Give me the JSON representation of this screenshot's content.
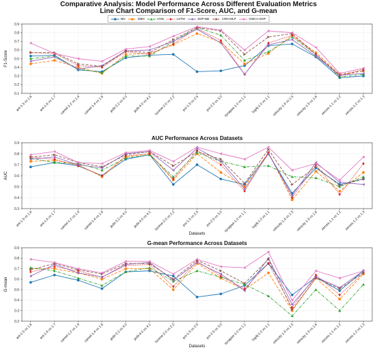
{
  "title_line1": "Comparative Analysis: Model Performance Across Different Evaluation Metrics",
  "title_line2": "Line Chart Comparison of F1-Score, AUC, and G-mean",
  "legend": [
    {
      "name": "BN",
      "color": "#1f77b4",
      "marker": "circle",
      "dash": "solid"
    },
    {
      "name": "DBN",
      "color": "#ff7f0e",
      "marker": "circle",
      "dash": "dashed"
    },
    {
      "name": "CNN",
      "color": "#2ca02c",
      "marker": "triangle",
      "dash": "dashdot"
    },
    {
      "name": "LSTM",
      "color": "#d62728",
      "marker": "diamond",
      "dash": "dotted"
    },
    {
      "name": "SDP-BB",
      "color": "#9467bd",
      "marker": "triangle-left",
      "dash": "solid"
    },
    {
      "name": "CNN-MLP",
      "color": "#8c564b",
      "marker": "triangle-right",
      "dash": "dashed"
    },
    {
      "name": "GMCA-SDP",
      "color": "#e377c2",
      "marker": "triangle-left",
      "dash": "solid"
    }
  ],
  "chart_data": [
    {
      "type": "line",
      "title": "",
      "xlabel": "",
      "ylabel": "F1-Score",
      "ylim": [
        0.1,
        0.9
      ],
      "yticks": [
        0.1,
        0.2,
        0.3,
        0.4,
        0.5,
        0.6,
        0.7,
        0.8,
        0.9
      ],
      "grid": true,
      "categories": [
        "ant-1.5 vs 1.6",
        "ant-1.6 vs 1.7",
        "camel-1.2 vs 1.4",
        "camel-1.4 vs 1.6",
        "jedit-3.2 vs 4.0",
        "jedit-4.0 vs 4.1",
        "lucene-2.0 vs 2.2",
        "poi-1.5 vs 2.5",
        "poi-2.5 vs 3.0",
        "synapse-1.0 vs 1.1",
        "log4j-1.0 vs 1.1",
        "velocity-1.4 vs 1.5",
        "velocity-1.5 vs 1.6",
        "xerces-1.1 vs 1.2",
        "xerces-1.2 vs 1.3"
      ],
      "series": [
        {
          "name": "BN",
          "values": [
            0.53,
            0.54,
            0.37,
            0.35,
            0.51,
            0.54,
            0.55,
            0.35,
            0.36,
            0.42,
            0.65,
            0.67,
            0.52,
            0.28,
            0.3
          ]
        },
        {
          "name": "DBN",
          "values": [
            0.44,
            0.48,
            0.4,
            0.33,
            0.55,
            0.56,
            0.66,
            0.79,
            0.69,
            0.44,
            0.56,
            0.77,
            0.57,
            0.32,
            0.36
          ]
        },
        {
          "name": "CNN",
          "values": [
            0.5,
            0.53,
            0.38,
            0.34,
            0.53,
            0.53,
            0.7,
            0.86,
            0.77,
            0.48,
            0.58,
            0.75,
            0.55,
            0.29,
            0.32
          ]
        },
        {
          "name": "LSTM",
          "values": [
            0.57,
            0.56,
            0.42,
            0.4,
            0.58,
            0.55,
            0.67,
            0.85,
            0.71,
            0.32,
            0.68,
            0.77,
            0.55,
            0.3,
            0.38
          ]
        },
        {
          "name": "SDP-BB",
          "values": [
            0.47,
            0.52,
            0.38,
            0.42,
            0.59,
            0.6,
            0.7,
            0.84,
            0.68,
            0.32,
            0.66,
            0.72,
            0.53,
            0.31,
            0.33
          ]
        },
        {
          "name": "CNN-MLP",
          "values": [
            0.57,
            0.57,
            0.44,
            0.41,
            0.59,
            0.57,
            0.72,
            0.86,
            0.82,
            0.55,
            0.75,
            0.79,
            0.55,
            0.31,
            0.36
          ]
        },
        {
          "name": "GMCA-SDP",
          "values": [
            0.68,
            0.56,
            0.5,
            0.47,
            0.61,
            0.64,
            0.76,
            0.87,
            0.83,
            0.6,
            0.82,
            0.8,
            0.63,
            0.33,
            0.39
          ]
        }
      ]
    },
    {
      "type": "line",
      "title": "AUC Performance Across Datasets",
      "xlabel": "Datasets",
      "ylabel": "AUC",
      "ylim": [
        0.3,
        0.9
      ],
      "yticks": [
        0.3,
        0.4,
        0.5,
        0.6,
        0.7,
        0.8,
        0.9
      ],
      "grid": true,
      "categories": [
        "ant-1.5 vs 1.6",
        "ant-1.6 vs 1.7",
        "camel-1.2 vs 1.4",
        "camel-1.4 vs 1.6",
        "jedit-3.2 vs 4.0",
        "jedit-4.0 vs 4.1",
        "lucene-2.0 vs 2.2",
        "poi-1.5 vs 2.5",
        "poi-2.5 vs 3.0",
        "synapse-1.0 vs 1.1",
        "log4j-1.0 vs 1.1",
        "velocity-1.4 vs 1.5",
        "velocity-1.5 vs 1.6",
        "xerces-1.1 vs 1.2",
        "xerces-1.2 vs 1.3"
      ],
      "series": [
        {
          "name": "BN",
          "values": [
            0.68,
            0.72,
            0.69,
            0.6,
            0.75,
            0.79,
            0.52,
            0.7,
            0.57,
            0.52,
            0.8,
            0.44,
            0.67,
            0.52,
            0.57
          ]
        },
        {
          "name": "DBN",
          "values": [
            0.73,
            0.74,
            0.7,
            0.59,
            0.77,
            0.8,
            0.56,
            0.8,
            0.63,
            0.5,
            0.81,
            0.38,
            0.64,
            0.46,
            0.63
          ]
        },
        {
          "name": "CNN",
          "values": [
            0.76,
            0.72,
            0.71,
            0.65,
            0.76,
            0.79,
            0.59,
            0.81,
            0.73,
            0.68,
            0.69,
            0.59,
            0.58,
            0.5,
            0.59
          ]
        },
        {
          "name": "LSTM",
          "values": [
            0.77,
            0.75,
            0.69,
            0.6,
            0.78,
            0.8,
            0.57,
            0.83,
            0.7,
            0.46,
            0.81,
            0.4,
            0.7,
            0.43,
            0.71
          ]
        },
        {
          "name": "SDP-BB",
          "values": [
            0.75,
            0.77,
            0.7,
            0.67,
            0.8,
            0.82,
            0.65,
            0.85,
            0.73,
            0.48,
            0.8,
            0.42,
            0.72,
            0.54,
            0.52
          ]
        },
        {
          "name": "CNN-MLP",
          "values": [
            0.77,
            0.79,
            0.72,
            0.68,
            0.79,
            0.82,
            0.69,
            0.82,
            0.75,
            0.53,
            0.84,
            0.52,
            0.68,
            0.51,
            0.57
          ]
        },
        {
          "name": "GMCA-SDP",
          "values": [
            0.79,
            0.82,
            0.72,
            0.71,
            0.81,
            0.83,
            0.73,
            0.86,
            0.8,
            0.75,
            0.86,
            0.65,
            0.71,
            0.56,
            0.77
          ]
        }
      ]
    },
    {
      "type": "line",
      "title": "G-mean Performance Across Datasets",
      "xlabel": "Datasets",
      "ylabel": "G-mean",
      "ylim": [
        0.2,
        0.9
      ],
      "yticks": [
        0.2,
        0.3,
        0.4,
        0.5,
        0.6,
        0.7,
        0.8,
        0.9
      ],
      "grid": true,
      "categories": [
        "ant-1.5 vs 1.6",
        "ant-1.6 vs 1.7",
        "camel-1.2 vs 1.4",
        "camel-1.4 vs 1.6",
        "jedit-3.2 vs 4.0",
        "jedit-4.0 vs 4.1",
        "lucene-2.0 vs 2.2",
        "poi-1.5 vs 2.5",
        "poi-2.5 vs 3.0",
        "synapse-1.0 vs 1.1",
        "log4j-1.0 vs 1.1",
        "velocity-1.4 vs 1.5",
        "velocity-1.5 vs 1.6",
        "xerces-1.1 vs 1.2",
        "xerces-1.2 vs 1.3"
      ],
      "series": [
        {
          "name": "BN",
          "values": [
            0.57,
            0.64,
            0.59,
            0.51,
            0.67,
            0.68,
            0.63,
            0.43,
            0.46,
            0.54,
            0.75,
            0.45,
            0.62,
            0.49,
            0.68
          ]
        },
        {
          "name": "DBN",
          "values": [
            0.7,
            0.7,
            0.66,
            0.6,
            0.7,
            0.7,
            0.5,
            0.75,
            0.61,
            0.5,
            0.66,
            0.3,
            0.61,
            0.41,
            0.65
          ]
        },
        {
          "name": "CNN",
          "values": [
            0.71,
            0.68,
            0.61,
            0.54,
            0.67,
            0.71,
            0.58,
            0.68,
            0.62,
            0.55,
            0.44,
            0.25,
            0.5,
            0.3,
            0.55
          ]
        },
        {
          "name": "LSTM",
          "values": [
            0.67,
            0.72,
            0.68,
            0.62,
            0.73,
            0.74,
            0.53,
            0.77,
            0.63,
            0.51,
            0.75,
            0.33,
            0.64,
            0.45,
            0.66
          ]
        },
        {
          "name": "SDP-BB",
          "values": [
            0.63,
            0.74,
            0.66,
            0.62,
            0.74,
            0.76,
            0.59,
            0.76,
            0.65,
            0.49,
            0.8,
            0.36,
            0.62,
            0.52,
            0.68
          ]
        },
        {
          "name": "CNN-MLP",
          "values": [
            0.69,
            0.75,
            0.69,
            0.65,
            0.75,
            0.75,
            0.6,
            0.78,
            0.68,
            0.56,
            0.79,
            0.31,
            0.61,
            0.51,
            0.66
          ]
        },
        {
          "name": "GMCA-SDP",
          "values": [
            0.79,
            0.76,
            0.7,
            0.66,
            0.77,
            0.77,
            0.65,
            0.79,
            0.72,
            0.71,
            0.86,
            0.4,
            0.68,
            0.61,
            0.68
          ]
        }
      ]
    }
  ]
}
